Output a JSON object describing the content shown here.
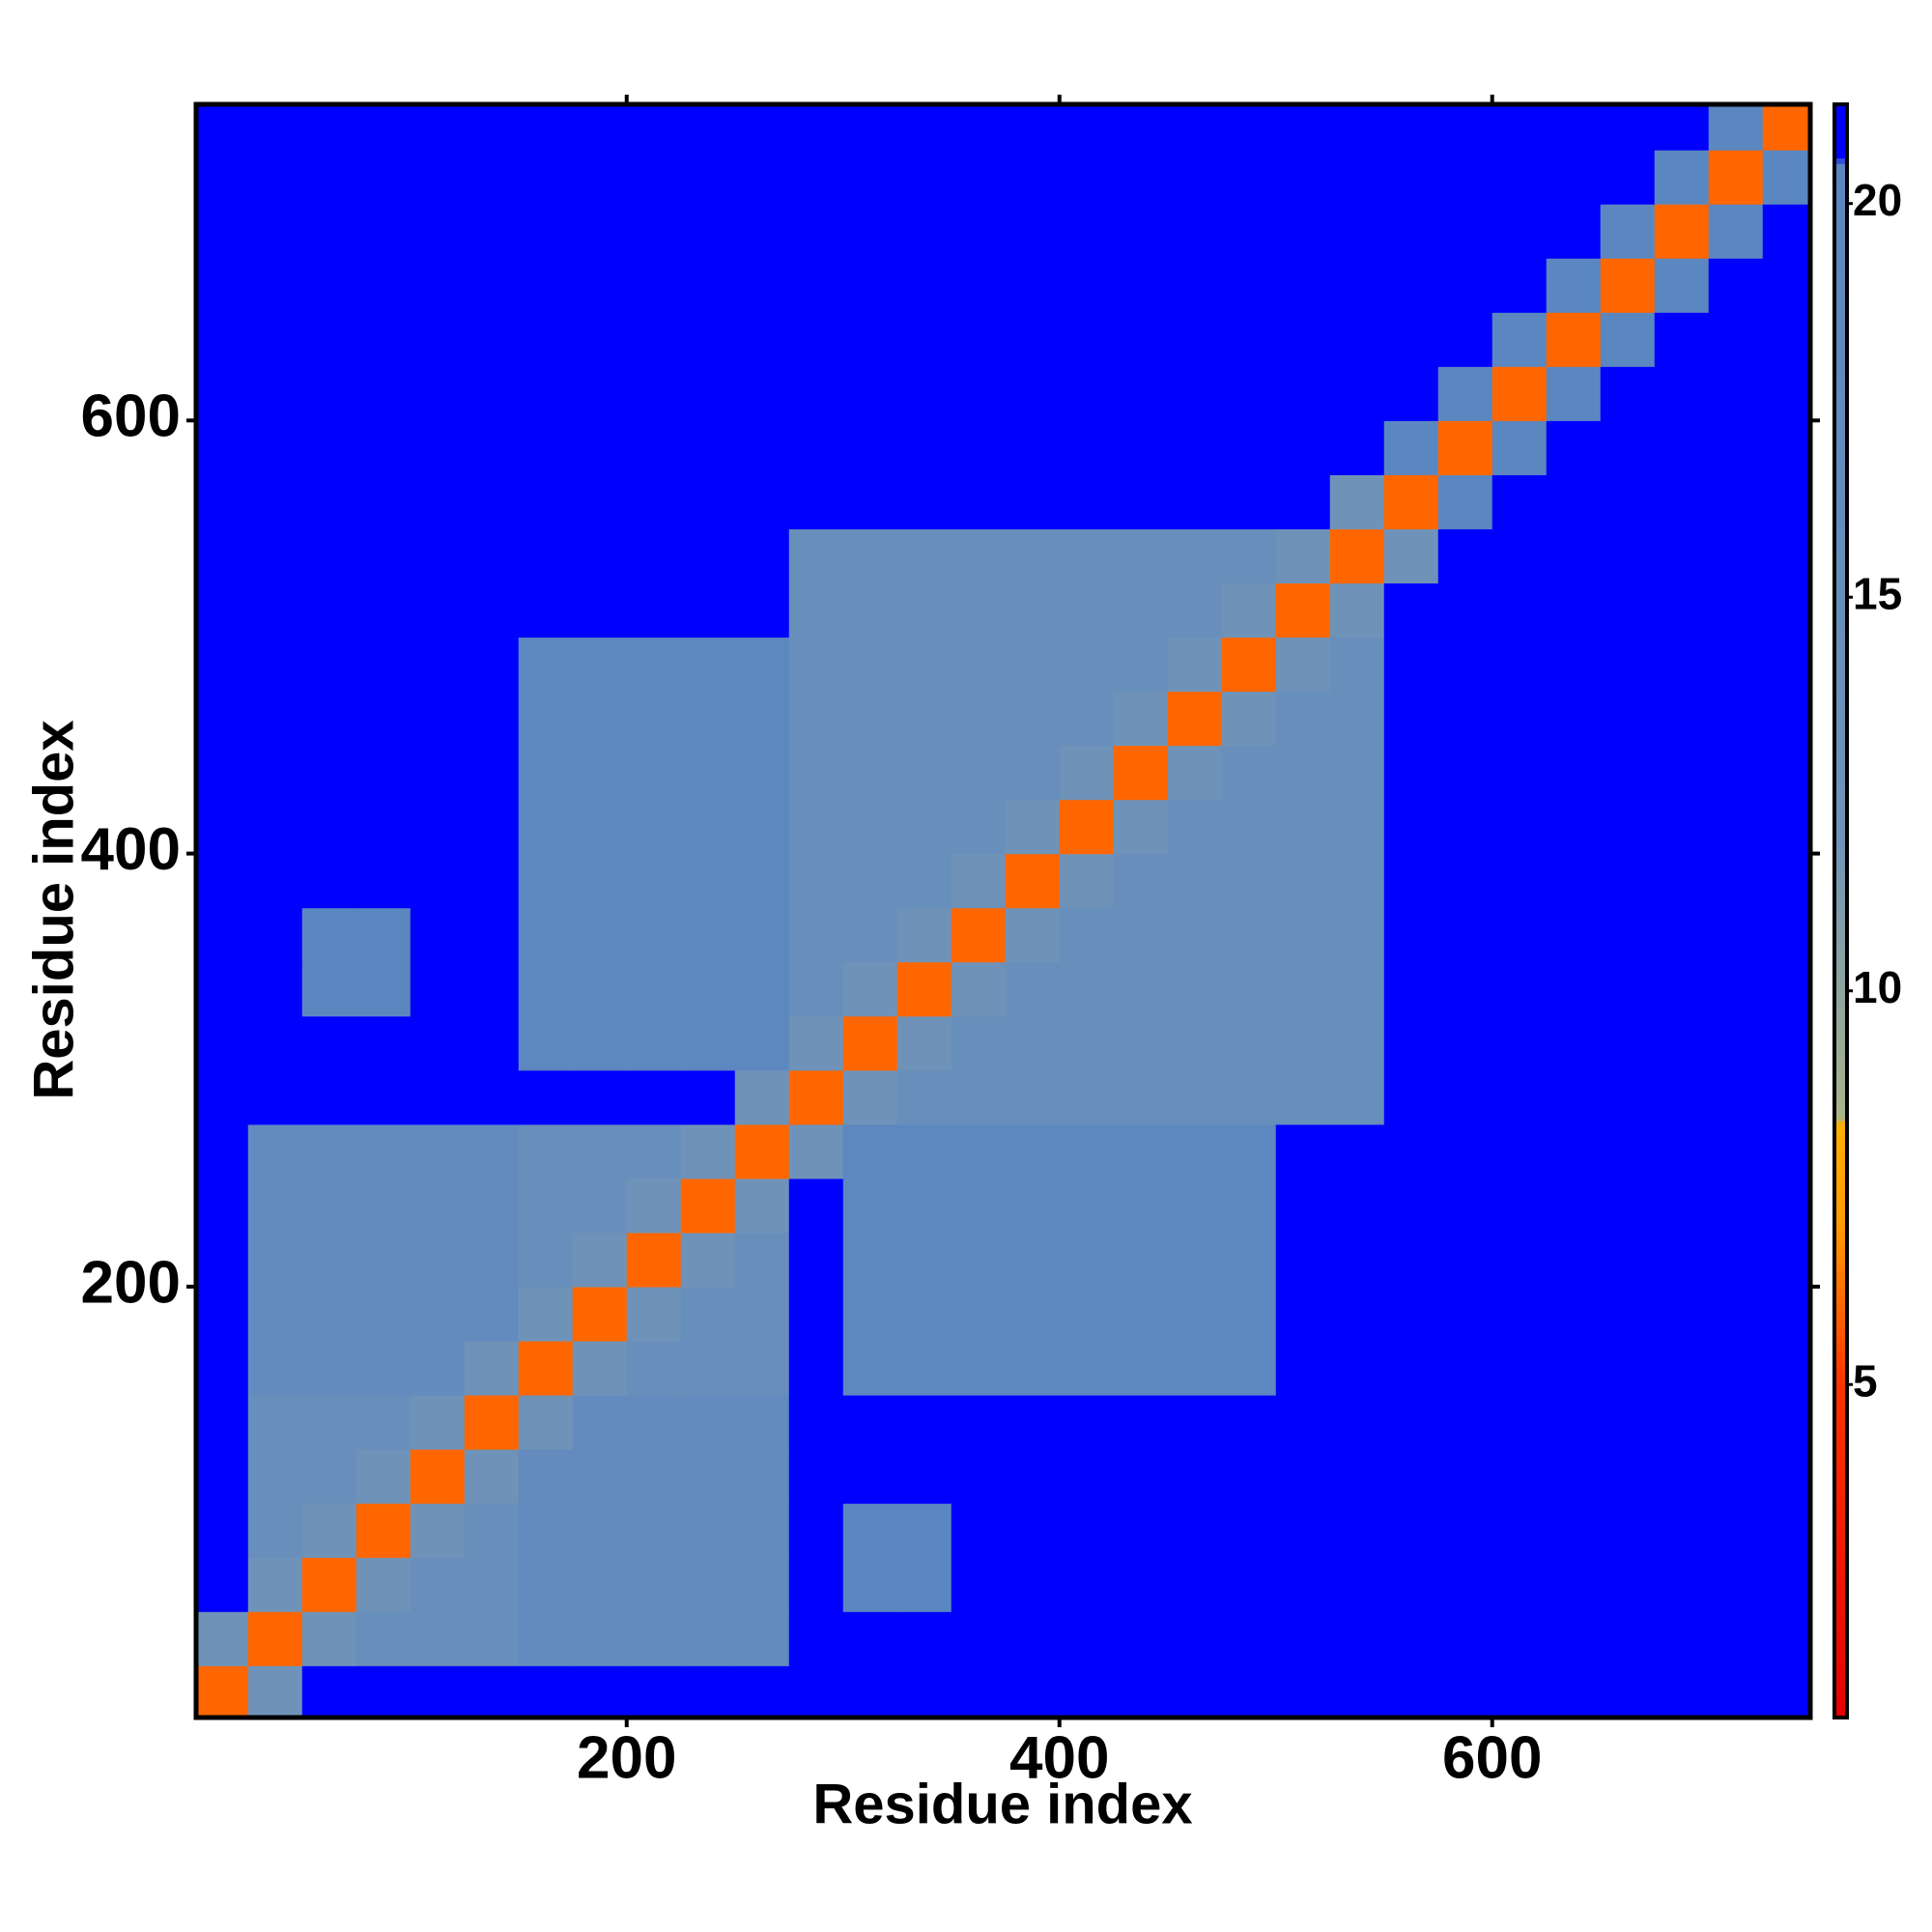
{
  "chart_data": {
    "type": "heatmap",
    "x_label": "Residue index",
    "y_label": "Residue index",
    "xlim": [
      1,
      747
    ],
    "ylim": [
      1,
      746
    ],
    "xticks": [
      200,
      400,
      600
    ],
    "yticks": [
      200,
      400,
      600
    ],
    "xbins": [
      0,
      25,
      50,
      75,
      100,
      125,
      150,
      175,
      200,
      225,
      250,
      275,
      300,
      325,
      350,
      375,
      400,
      425,
      450,
      475,
      500,
      525,
      550,
      575,
      600,
      625,
      650,
      675,
      700,
      725,
      750
    ],
    "ybins": [
      0,
      25,
      50,
      75,
      100,
      125,
      150,
      175,
      200,
      225,
      250,
      275,
      300,
      325,
      350,
      375,
      400,
      425,
      450,
      475,
      500,
      525,
      550,
      575,
      600,
      625,
      650,
      675,
      700,
      725,
      750
    ],
    "z": [
      [
        6,
        12,
        21,
        21,
        21,
        21,
        21,
        21,
        21,
        21,
        21,
        21,
        21,
        21,
        21,
        21,
        21,
        21,
        21,
        21,
        21,
        21,
        21,
        21,
        21,
        21,
        21,
        21,
        21,
        21
      ],
      [
        12,
        6,
        12,
        15,
        15,
        15,
        17,
        17,
        17,
        17,
        17,
        21,
        21,
        21,
        21,
        21,
        21,
        21,
        21,
        21,
        21,
        21,
        21,
        21,
        21,
        21,
        21,
        21,
        21,
        21
      ],
      [
        21,
        12,
        6,
        12,
        15,
        15,
        17,
        17,
        17,
        17,
        17,
        21,
        20,
        20,
        21,
        21,
        21,
        21,
        21,
        21,
        21,
        21,
        21,
        21,
        21,
        21,
        21,
        21,
        21,
        21
      ],
      [
        21,
        15,
        12,
        6,
        12,
        15,
        17,
        17,
        17,
        17,
        17,
        21,
        20,
        20,
        21,
        21,
        21,
        21,
        21,
        21,
        21,
        21,
        21,
        21,
        21,
        21,
        21,
        21,
        21,
        21
      ],
      [
        21,
        15,
        15,
        12,
        6,
        12,
        17,
        17,
        17,
        17,
        17,
        21,
        21,
        21,
        21,
        21,
        21,
        21,
        21,
        21,
        21,
        21,
        21,
        21,
        21,
        21,
        21,
        21,
        21,
        21
      ],
      [
        21,
        15,
        15,
        15,
        12,
        6,
        12,
        17,
        17,
        17,
        17,
        21,
        21,
        21,
        21,
        21,
        21,
        21,
        21,
        21,
        21,
        21,
        21,
        21,
        21,
        21,
        21,
        21,
        21,
        21
      ],
      [
        21,
        17,
        17,
        17,
        17,
        12,
        6,
        12,
        15,
        15,
        15,
        21,
        19.5,
        19.5,
        19.5,
        19.5,
        19.5,
        19.5,
        19.5,
        19.5,
        21,
        21,
        21,
        21,
        21,
        21,
        21,
        21,
        21,
        21
      ],
      [
        21,
        17,
        17,
        17,
        17,
        17,
        12,
        6,
        12,
        15,
        15,
        21,
        19.5,
        19.5,
        19.5,
        19.5,
        19.5,
        19.5,
        19.5,
        19.5,
        21,
        21,
        21,
        21,
        21,
        21,
        21,
        21,
        21,
        21
      ],
      [
        21,
        17,
        17,
        17,
        17,
        17,
        15,
        12,
        6,
        12,
        15,
        21,
        19.5,
        19.5,
        19.5,
        19.5,
        19.5,
        19.5,
        19.5,
        19.5,
        21,
        21,
        21,
        21,
        21,
        21,
        21,
        21,
        21,
        21
      ],
      [
        21,
        17,
        17,
        17,
        17,
        17,
        15,
        15,
        12,
        6,
        12,
        21,
        19.5,
        19.5,
        19.5,
        19.5,
        19.5,
        19.5,
        19.5,
        19.5,
        21,
        21,
        21,
        21,
        21,
        21,
        21,
        21,
        21,
        21
      ],
      [
        21,
        17,
        17,
        17,
        17,
        17,
        15,
        15,
        15,
        12,
        6,
        12,
        19.5,
        19.5,
        19.5,
        19.5,
        19.5,
        19.5,
        19.5,
        19.5,
        21,
        21,
        21,
        21,
        21,
        21,
        21,
        21,
        21,
        21
      ],
      [
        21,
        21,
        21,
        21,
        21,
        21,
        21,
        21,
        21,
        21,
        12,
        6,
        12,
        15,
        15,
        15,
        15,
        15,
        15,
        15,
        15,
        15,
        21,
        21,
        21,
        21,
        21,
        21,
        21,
        21
      ],
      [
        21,
        21,
        21,
        21,
        21,
        21,
        19.5,
        19.5,
        19.5,
        19.5,
        19.5,
        12,
        6,
        12,
        15,
        15,
        15,
        15,
        15,
        15,
        15,
        15,
        21,
        21,
        21,
        21,
        21,
        21,
        21,
        21
      ],
      [
        21,
        21,
        20,
        20,
        21,
        21,
        19.5,
        19.5,
        19.5,
        19.5,
        19.5,
        15,
        12,
        6,
        12,
        15,
        15,
        15,
        15,
        15,
        15,
        15,
        21,
        21,
        21,
        21,
        21,
        21,
        21,
        21
      ],
      [
        21,
        21,
        20,
        20,
        21,
        21,
        19.5,
        19.5,
        19.5,
        19.5,
        19.5,
        15,
        15,
        12,
        6,
        12,
        15,
        15,
        15,
        15,
        15,
        15,
        21,
        21,
        21,
        21,
        21,
        21,
        21,
        21
      ],
      [
        21,
        21,
        21,
        21,
        21,
        21,
        19.5,
        19.5,
        19.5,
        19.5,
        19.5,
        15,
        15,
        15,
        12,
        6,
        12,
        15,
        15,
        15,
        15,
        15,
        21,
        21,
        21,
        21,
        21,
        21,
        21,
        21
      ],
      [
        21,
        21,
        21,
        21,
        21,
        21,
        19.5,
        19.5,
        19.5,
        19.5,
        19.5,
        15,
        15,
        15,
        15,
        12,
        6,
        12,
        15,
        15,
        15,
        15,
        21,
        21,
        21,
        21,
        21,
        21,
        21,
        21
      ],
      [
        21,
        21,
        21,
        21,
        21,
        21,
        19.5,
        19.5,
        19.5,
        19.5,
        19.5,
        15,
        15,
        15,
        15,
        15,
        12,
        6,
        12,
        15,
        15,
        15,
        21,
        21,
        21,
        21,
        21,
        21,
        21,
        21
      ],
      [
        21,
        21,
        21,
        21,
        21,
        21,
        19.5,
        19.5,
        19.5,
        19.5,
        19.5,
        15,
        15,
        15,
        15,
        15,
        15,
        12,
        6,
        12,
        15,
        15,
        21,
        21,
        21,
        21,
        21,
        21,
        21,
        21
      ],
      [
        21,
        21,
        21,
        21,
        21,
        21,
        19.5,
        19.5,
        19.5,
        19.5,
        19.5,
        15,
        15,
        15,
        15,
        15,
        15,
        15,
        12,
        6,
        12,
        15,
        21,
        21,
        21,
        21,
        21,
        21,
        21,
        21
      ],
      [
        21,
        21,
        21,
        21,
        21,
        21,
        21,
        21,
        21,
        21,
        21,
        15,
        15,
        15,
        15,
        15,
        15,
        15,
        15,
        12,
        6,
        12,
        21,
        21,
        21,
        21,
        21,
        21,
        21,
        21
      ],
      [
        21,
        21,
        21,
        21,
        21,
        21,
        21,
        21,
        21,
        21,
        21,
        15,
        15,
        15,
        15,
        15,
        15,
        15,
        15,
        15,
        12,
        6,
        12,
        21,
        21,
        21,
        21,
        21,
        21,
        21
      ],
      [
        21,
        21,
        21,
        21,
        21,
        21,
        21,
        21,
        21,
        21,
        21,
        21,
        21,
        21,
        21,
        21,
        21,
        21,
        21,
        21,
        21,
        12,
        6,
        20,
        21,
        21,
        21,
        21,
        21,
        21
      ],
      [
        21,
        21,
        21,
        21,
        21,
        21,
        21,
        21,
        21,
        21,
        21,
        21,
        21,
        21,
        21,
        21,
        21,
        21,
        21,
        21,
        21,
        21,
        20,
        6,
        20,
        21,
        21,
        21,
        21,
        21
      ],
      [
        21,
        21,
        21,
        21,
        21,
        21,
        21,
        21,
        21,
        21,
        21,
        21,
        21,
        21,
        21,
        21,
        21,
        21,
        21,
        21,
        21,
        21,
        21,
        20,
        6,
        20,
        21,
        21,
        21,
        21
      ],
      [
        21,
        21,
        21,
        21,
        21,
        21,
        21,
        21,
        21,
        21,
        21,
        21,
        21,
        21,
        21,
        21,
        21,
        21,
        21,
        21,
        21,
        21,
        21,
        21,
        20,
        6,
        20,
        21,
        21,
        21
      ],
      [
        21,
        21,
        21,
        21,
        21,
        21,
        21,
        21,
        21,
        21,
        21,
        21,
        21,
        21,
        21,
        21,
        21,
        21,
        21,
        21,
        21,
        21,
        21,
        21,
        21,
        20,
        6,
        20,
        21,
        21
      ],
      [
        21,
        21,
        21,
        21,
        21,
        21,
        21,
        21,
        21,
        21,
        21,
        21,
        21,
        21,
        21,
        21,
        21,
        21,
        21,
        21,
        21,
        21,
        21,
        21,
        21,
        21,
        20,
        6,
        20,
        21
      ],
      [
        21,
        21,
        21,
        21,
        21,
        21,
        21,
        21,
        21,
        21,
        21,
        21,
        21,
        21,
        21,
        21,
        21,
        21,
        21,
        21,
        21,
        21,
        21,
        21,
        21,
        21,
        21,
        20,
        6,
        20
      ],
      [
        21,
        21,
        21,
        21,
        21,
        21,
        21,
        21,
        21,
        21,
        21,
        21,
        21,
        21,
        21,
        21,
        21,
        21,
        21,
        21,
        21,
        21,
        21,
        21,
        21,
        21,
        21,
        21,
        20,
        6
      ]
    ],
    "clim": [
      0.77,
      21.26
    ],
    "cticks": [
      5,
      10,
      15,
      20
    ],
    "colorscale": [
      [
        0.77,
        "#e60000"
      ],
      [
        5,
        "#ff3300"
      ],
      [
        7,
        "#ff9900"
      ],
      [
        8.3,
        "#ffb000"
      ],
      [
        8.4,
        "#a8b48a"
      ],
      [
        12,
        "#6f93b8"
      ],
      [
        20.5,
        "#5a86c0"
      ],
      [
        20.6,
        "#0000ff"
      ],
      [
        21.26,
        "#0000ff"
      ]
    ]
  }
}
